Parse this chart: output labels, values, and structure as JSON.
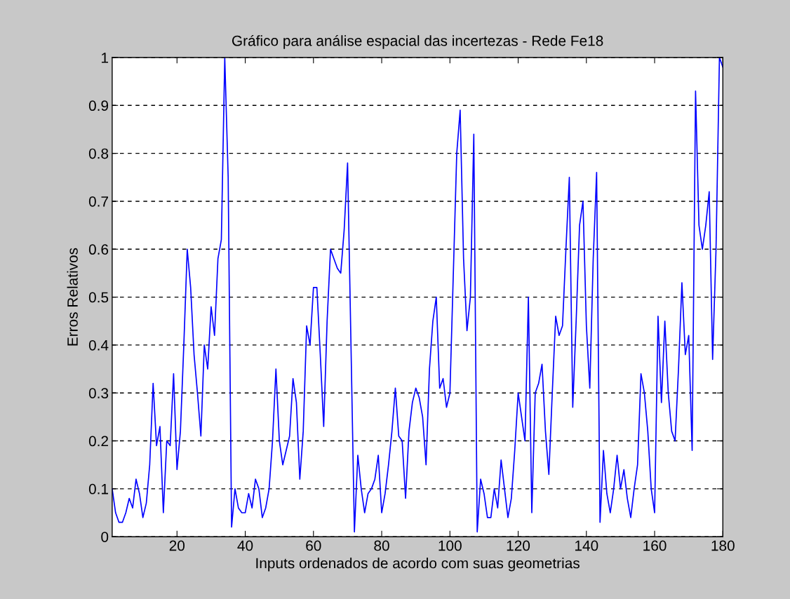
{
  "chart_data": {
    "type": "line",
    "title": "Gráfico para análise espacial das incertezas - Rede Fe18",
    "xlabel": "Inputs ordenados de acordo com suas geometrias",
    "ylabel": "Erros Relativos",
    "x": [
      1,
      2,
      3,
      4,
      5,
      6,
      7,
      8,
      9,
      10,
      11,
      12,
      13,
      14,
      15,
      16,
      17,
      18,
      19,
      20,
      21,
      22,
      23,
      24,
      25,
      26,
      27,
      28,
      29,
      30,
      31,
      32,
      33,
      34,
      35,
      36,
      37,
      38,
      39,
      40,
      41,
      42,
      43,
      44,
      45,
      46,
      47,
      48,
      49,
      50,
      51,
      52,
      53,
      54,
      55,
      56,
      57,
      58,
      59,
      60,
      61,
      62,
      63,
      64,
      65,
      66,
      67,
      68,
      69,
      70,
      71,
      72,
      73,
      74,
      75,
      76,
      77,
      78,
      79,
      80,
      81,
      82,
      83,
      84,
      85,
      86,
      87,
      88,
      89,
      90,
      91,
      92,
      93,
      94,
      95,
      96,
      97,
      98,
      99,
      100,
      101,
      102,
      103,
      104,
      105,
      106,
      107,
      108,
      109,
      110,
      111,
      112,
      113,
      114,
      115,
      116,
      117,
      118,
      119,
      120,
      121,
      122,
      123,
      124,
      125,
      126,
      127,
      128,
      129,
      130,
      131,
      132,
      133,
      134,
      135,
      136,
      137,
      138,
      139,
      140,
      141,
      142,
      143,
      144,
      145,
      146,
      147,
      148,
      149,
      150,
      151,
      152,
      153,
      154,
      155,
      156,
      157,
      158,
      159,
      160,
      161,
      162,
      163,
      164,
      165,
      166,
      167,
      168,
      169,
      170,
      171,
      172,
      173,
      174,
      175,
      176,
      177,
      178,
      179,
      180
    ],
    "series": [
      {
        "color": "#0000ff",
        "values": [
          0.1,
          0.05,
          0.03,
          0.03,
          0.05,
          0.08,
          0.06,
          0.12,
          0.09,
          0.04,
          0.07,
          0.15,
          0.32,
          0.19,
          0.23,
          0.05,
          0.2,
          0.19,
          0.34,
          0.14,
          0.22,
          0.4,
          0.6,
          0.52,
          0.38,
          0.3,
          0.21,
          0.4,
          0.35,
          0.48,
          0.42,
          0.58,
          0.62,
          1.0,
          0.75,
          0.02,
          0.1,
          0.06,
          0.05,
          0.05,
          0.09,
          0.06,
          0.12,
          0.1,
          0.04,
          0.06,
          0.1,
          0.2,
          0.35,
          0.2,
          0.15,
          0.18,
          0.21,
          0.33,
          0.28,
          0.12,
          0.22,
          0.44,
          0.4,
          0.52,
          0.52,
          0.38,
          0.23,
          0.45,
          0.6,
          0.58,
          0.56,
          0.55,
          0.64,
          0.78,
          0.4,
          0.01,
          0.17,
          0.1,
          0.05,
          0.09,
          0.1,
          0.12,
          0.17,
          0.05,
          0.09,
          0.15,
          0.22,
          0.31,
          0.21,
          0.2,
          0.08,
          0.22,
          0.28,
          0.31,
          0.29,
          0.25,
          0.15,
          0.35,
          0.45,
          0.5,
          0.31,
          0.33,
          0.27,
          0.3,
          0.55,
          0.8,
          0.89,
          0.58,
          0.43,
          0.5,
          0.84,
          0.01,
          0.12,
          0.09,
          0.04,
          0.04,
          0.1,
          0.06,
          0.16,
          0.1,
          0.04,
          0.08,
          0.18,
          0.3,
          0.25,
          0.2,
          0.5,
          0.05,
          0.3,
          0.32,
          0.36,
          0.22,
          0.13,
          0.3,
          0.46,
          0.42,
          0.44,
          0.6,
          0.75,
          0.27,
          0.45,
          0.65,
          0.7,
          0.44,
          0.31,
          0.58,
          0.76,
          0.03,
          0.18,
          0.09,
          0.05,
          0.1,
          0.17,
          0.1,
          0.14,
          0.08,
          0.04,
          0.1,
          0.15,
          0.34,
          0.3,
          0.22,
          0.1,
          0.05,
          0.46,
          0.28,
          0.45,
          0.3,
          0.22,
          0.2,
          0.35,
          0.53,
          0.38,
          0.42,
          0.18,
          0.93,
          0.65,
          0.6,
          0.65,
          0.72,
          0.37,
          0.6,
          1.0,
          0.98
        ]
      }
    ],
    "xlim": [
      1,
      180
    ],
    "xticks": [
      20,
      40,
      60,
      80,
      100,
      120,
      140,
      160,
      180
    ],
    "ylim": [
      0,
      1
    ],
    "yticks": [
      0,
      0.1,
      0.2,
      0.3,
      0.4,
      0.5,
      0.6,
      0.7,
      0.8,
      0.9,
      1
    ],
    "grid": "y",
    "line_style": "solid"
  }
}
